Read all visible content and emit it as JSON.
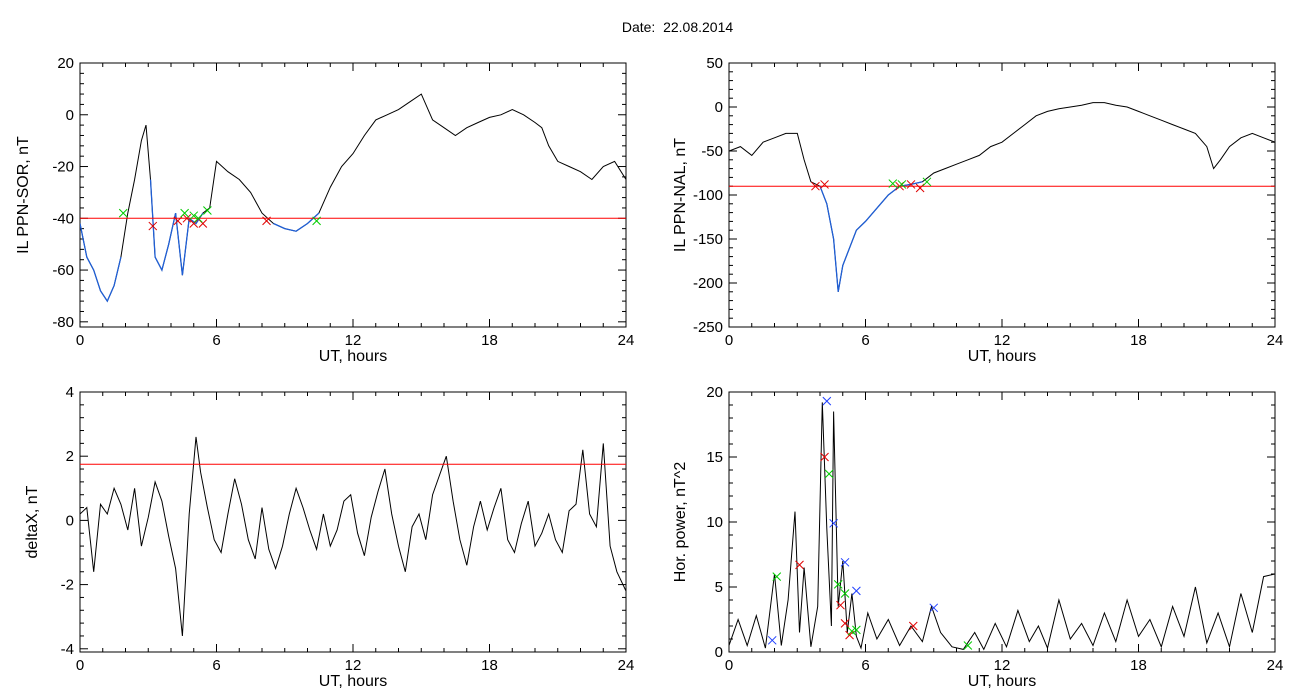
{
  "header": {
    "date_label": "Date:",
    "date_value": "22.08.2014"
  },
  "colors": {
    "axis": "#000000",
    "trace": "#000000",
    "subset": "#1f5fd6",
    "threshold": "#ff0000",
    "marker_red": "#e00000",
    "marker_green": "#00cc00",
    "marker_blue": "#2040ff"
  },
  "chart_data": [
    {
      "id": "il-ppn-sor",
      "type": "line",
      "xlabel": "UT, hours",
      "ylabel": "IL PPN-SOR, nT",
      "xlim": [
        0,
        24
      ],
      "ylim": [
        -82,
        20
      ],
      "xticks": [
        0,
        6,
        12,
        18,
        24
      ],
      "yticks": [
        -80,
        -60,
        -40,
        -20,
        0,
        20
      ],
      "threshold": -40,
      "series": [
        {
          "x": [
            0,
            0.3,
            0.6,
            0.9,
            1.2,
            1.5,
            1.8,
            2.1,
            2.4,
            2.7,
            2.9,
            3.1,
            3.3,
            3.6,
            3.9,
            4.2,
            4.5,
            4.8,
            5.1,
            5.4,
            5.7,
            6.0,
            6.5,
            7.0,
            7.5,
            8.0,
            8.5,
            9.0,
            9.5,
            10.0,
            10.5,
            11.0,
            11.5,
            12.0,
            12.5,
            13.0,
            13.5,
            14.0,
            14.5,
            15.0,
            15.5,
            16.0,
            16.5,
            17.0,
            17.5,
            18.0,
            18.5,
            19.0,
            19.5,
            20.0,
            20.3,
            20.6,
            21.0,
            21.5,
            22.0,
            22.5,
            23.0,
            23.5,
            24.0
          ],
          "y": [
            -42,
            -55,
            -60,
            -68,
            -72,
            -66,
            -55,
            -38,
            -25,
            -10,
            -4,
            -25,
            -55,
            -60,
            -50,
            -38,
            -62,
            -40,
            -42,
            -38,
            -36,
            -18,
            -22,
            -25,
            -30,
            -38,
            -42,
            -44,
            -45,
            -42,
            -38,
            -28,
            -20,
            -15,
            -8,
            -2,
            0,
            2,
            5,
            8,
            -2,
            -5,
            -8,
            -5,
            -3,
            -1,
            0,
            2,
            0,
            -3,
            -5,
            -12,
            -18,
            -20,
            -22,
            -25,
            -20,
            -18,
            -25
          ]
        }
      ],
      "subset_ranges": [
        [
          0,
          1.9
        ],
        [
          3.1,
          5.6
        ],
        [
          8.2,
          10.5
        ]
      ],
      "markers": [
        {
          "color": "red",
          "points": [
            [
              3.2,
              -43
            ],
            [
              4.3,
              -41
            ],
            [
              4.7,
              -40
            ],
            [
              5.0,
              -42
            ],
            [
              5.4,
              -42
            ],
            [
              8.2,
              -41
            ]
          ]
        },
        {
          "color": "green",
          "points": [
            [
              1.9,
              -38
            ],
            [
              4.6,
              -38
            ],
            [
              5.0,
              -39
            ],
            [
              5.2,
              -40
            ],
            [
              5.6,
              -37
            ],
            [
              10.4,
              -41
            ]
          ]
        }
      ]
    },
    {
      "id": "il-ppn-nal",
      "type": "line",
      "xlabel": "UT, hours",
      "ylabel": "IL PPN-NAL, nT",
      "xlim": [
        0,
        24
      ],
      "ylim": [
        -250,
        50
      ],
      "xticks": [
        0,
        6,
        12,
        18,
        24
      ],
      "yticks": [
        -250,
        -200,
        -150,
        -100,
        -50,
        0,
        50
      ],
      "threshold": -90,
      "series": [
        {
          "x": [
            0,
            0.5,
            1.0,
            1.5,
            2.0,
            2.5,
            3.0,
            3.3,
            3.6,
            4.0,
            4.3,
            4.6,
            4.8,
            5.0,
            5.3,
            5.6,
            6.0,
            6.5,
            7.0,
            7.5,
            8.0,
            8.5,
            9.0,
            9.5,
            10.0,
            10.5,
            11.0,
            11.5,
            12.0,
            12.5,
            13.0,
            13.5,
            14.0,
            14.5,
            15.0,
            15.5,
            16.0,
            16.5,
            17.0,
            17.5,
            18.0,
            18.5,
            19.0,
            19.5,
            20.0,
            20.5,
            21.0,
            21.3,
            21.6,
            22.0,
            22.5,
            23.0,
            23.5,
            24.0
          ],
          "y": [
            -50,
            -45,
            -55,
            -40,
            -35,
            -30,
            -30,
            -60,
            -85,
            -90,
            -110,
            -150,
            -210,
            -180,
            -160,
            -140,
            -130,
            -115,
            -100,
            -90,
            -88,
            -85,
            -75,
            -70,
            -65,
            -60,
            -55,
            -45,
            -40,
            -30,
            -20,
            -10,
            -5,
            -2,
            0,
            2,
            5,
            5,
            2,
            0,
            -5,
            -10,
            -15,
            -20,
            -25,
            -30,
            -45,
            -70,
            -60,
            -45,
            -35,
            -30,
            -35,
            -40
          ]
        }
      ],
      "subset_ranges": [
        [
          3.9,
          8.6
        ]
      ],
      "markers": [
        {
          "color": "red",
          "points": [
            [
              3.8,
              -90
            ],
            [
              4.2,
              -88
            ],
            [
              7.5,
              -90
            ],
            [
              8.0,
              -88
            ],
            [
              8.4,
              -92
            ]
          ]
        },
        {
          "color": "green",
          "points": [
            [
              7.2,
              -87
            ],
            [
              7.6,
              -88
            ],
            [
              8.7,
              -85
            ]
          ]
        }
      ]
    },
    {
      "id": "deltax",
      "type": "line",
      "xlabel": "UT, hours",
      "ylabel": "deltaX, nT",
      "xlim": [
        0,
        24
      ],
      "ylim": [
        -4.1,
        4
      ],
      "xticks": [
        0,
        6,
        12,
        18,
        24
      ],
      "yticks": [
        -4,
        -2,
        0,
        2,
        4
      ],
      "threshold": 1.75,
      "series": [
        {
          "x": [
            0,
            0.3,
            0.6,
            0.9,
            1.2,
            1.5,
            1.8,
            2.1,
            2.4,
            2.7,
            3.0,
            3.3,
            3.6,
            3.9,
            4.2,
            4.5,
            4.8,
            5.1,
            5.3,
            5.6,
            5.9,
            6.2,
            6.5,
            6.8,
            7.1,
            7.4,
            7.7,
            8.0,
            8.3,
            8.6,
            8.9,
            9.2,
            9.5,
            9.8,
            10.1,
            10.4,
            10.7,
            11.0,
            11.3,
            11.6,
            11.9,
            12.2,
            12.5,
            12.8,
            13.1,
            13.4,
            13.7,
            14.0,
            14.3,
            14.6,
            14.9,
            15.2,
            15.5,
            15.8,
            16.1,
            16.4,
            16.7,
            17.0,
            17.3,
            17.6,
            17.9,
            18.2,
            18.5,
            18.8,
            19.1,
            19.4,
            19.7,
            20.0,
            20.3,
            20.6,
            20.9,
            21.2,
            21.5,
            21.8,
            22.1,
            22.4,
            22.7,
            23.0,
            23.3,
            23.6,
            24.0
          ],
          "y": [
            0.2,
            0.4,
            -1.6,
            0.5,
            0.2,
            1.0,
            0.5,
            -0.3,
            1.0,
            -0.8,
            0.1,
            1.2,
            0.6,
            -0.5,
            -1.5,
            -3.6,
            0.2,
            2.6,
            1.5,
            0.4,
            -0.6,
            -1.0,
            0.2,
            1.3,
            0.5,
            -0.6,
            -1.2,
            0.4,
            -0.9,
            -1.5,
            -0.8,
            0.2,
            1.0,
            0.4,
            -0.3,
            -0.9,
            0.2,
            -0.8,
            -0.3,
            0.6,
            0.8,
            -0.4,
            -1.1,
            0.1,
            0.9,
            1.6,
            0.2,
            -0.8,
            -1.6,
            -0.2,
            0.2,
            -0.6,
            0.8,
            1.4,
            2.0,
            0.6,
            -0.6,
            -1.4,
            -0.2,
            0.6,
            -0.3,
            0.4,
            1.0,
            -0.6,
            -1.0,
            -0.1,
            0.6,
            -0.8,
            -0.4,
            0.2,
            -0.6,
            -1.0,
            0.3,
            0.5,
            2.2,
            0.2,
            -0.2,
            2.4,
            -0.8,
            -1.6,
            -2.2
          ]
        }
      ]
    },
    {
      "id": "hor-power",
      "type": "line",
      "xlabel": "UT, hours",
      "ylabel": "Hor. power, nT^2",
      "xlim": [
        0,
        24
      ],
      "ylim": [
        0,
        20
      ],
      "xticks": [
        0,
        6,
        12,
        18,
        24
      ],
      "yticks": [
        0,
        5,
        10,
        15,
        20
      ],
      "series": [
        {
          "x": [
            0,
            0.4,
            0.8,
            1.2,
            1.6,
            2.0,
            2.3,
            2.6,
            2.9,
            3.1,
            3.3,
            3.6,
            3.9,
            4.1,
            4.3,
            4.5,
            4.6,
            4.8,
            5.0,
            5.2,
            5.4,
            5.6,
            5.8,
            6.1,
            6.5,
            7.0,
            7.5,
            8.0,
            8.5,
            8.9,
            9.3,
            9.8,
            10.3,
            10.8,
            11.2,
            11.7,
            12.2,
            12.7,
            13.2,
            13.6,
            14.0,
            14.5,
            15.0,
            15.5,
            16.0,
            16.5,
            17.0,
            17.5,
            18.0,
            18.5,
            19.0,
            19.5,
            20.0,
            20.5,
            21.0,
            21.5,
            22.0,
            22.5,
            23.0,
            23.5,
            24.0
          ],
          "y": [
            0.5,
            2.5,
            0.5,
            2.8,
            0.3,
            6.0,
            0.5,
            4.0,
            10.8,
            1.5,
            6.5,
            0.4,
            3.5,
            19.2,
            9.5,
            2.0,
            18.5,
            3.5,
            7.0,
            1.5,
            4.5,
            1.2,
            0.3,
            3.0,
            1.0,
            2.5,
            0.5,
            2.0,
            0.8,
            3.5,
            1.5,
            0.4,
            0.2,
            1.5,
            0.2,
            2.2,
            0.4,
            3.2,
            0.8,
            2.0,
            0.3,
            4.0,
            1.0,
            2.2,
            0.5,
            3.0,
            0.8,
            4.0,
            1.2,
            2.5,
            0.4,
            3.5,
            1.2,
            5.0,
            0.7,
            3.0,
            0.4,
            4.5,
            1.5,
            5.8,
            6.0
          ]
        }
      ],
      "markers": [
        {
          "color": "red",
          "points": [
            [
              3.1,
              6.7
            ],
            [
              4.2,
              15.0
            ],
            [
              4.9,
              3.6
            ],
            [
              5.1,
              2.2
            ],
            [
              5.3,
              1.3
            ],
            [
              8.1,
              2.0
            ]
          ]
        },
        {
          "color": "green",
          "points": [
            [
              2.1,
              5.8
            ],
            [
              4.4,
              13.7
            ],
            [
              4.8,
              5.2
            ],
            [
              5.1,
              4.5
            ],
            [
              5.4,
              1.6
            ],
            [
              5.6,
              1.7
            ],
            [
              10.5,
              0.5
            ]
          ]
        },
        {
          "color": "blue",
          "points": [
            [
              1.9,
              0.9
            ],
            [
              4.3,
              19.3
            ],
            [
              4.6,
              9.9
            ],
            [
              5.1,
              6.9
            ],
            [
              5.6,
              4.7
            ],
            [
              9.0,
              3.4
            ]
          ]
        }
      ]
    }
  ]
}
